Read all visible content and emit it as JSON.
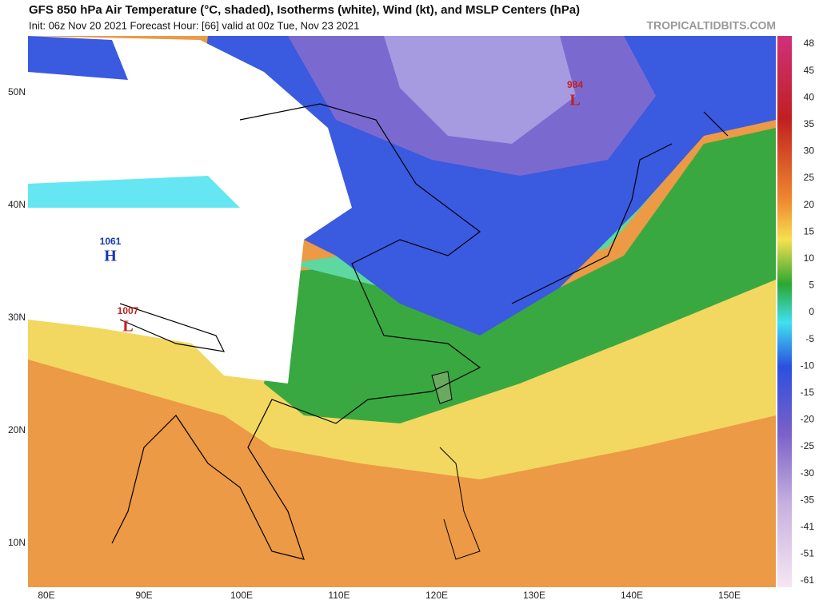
{
  "header": {
    "title": "GFS 850 hPa Air Temperature (°C, shaded), Isotherms (white), Wind (kt), and MSLP Centers (hPa)",
    "subtitle": "Init: 06z Nov 20 2021   Forecast Hour: [66]   valid at 00z Tue, Nov 23 2021",
    "watermark": "TROPICALTIDBITS.COM"
  },
  "map": {
    "lat_labels": [
      "50N",
      "40N",
      "30N",
      "20N",
      "10N"
    ],
    "lon_labels": [
      "80E",
      "90E",
      "100E",
      "110E",
      "120E",
      "130E",
      "140E",
      "150E"
    ],
    "pressure_centers": [
      {
        "value": "1061",
        "symbol": "H"
      },
      {
        "value": "1007",
        "symbol": "L"
      },
      {
        "value": "984",
        "symbol": "L"
      }
    ]
  },
  "colorbar": {
    "labels": [
      "48",
      "45",
      "40",
      "35",
      "30",
      "25",
      "20",
      "15",
      "10",
      "5",
      "0",
      "-5",
      "-10",
      "-15",
      "-20",
      "-25",
      "-30",
      "-35",
      "-41",
      "-51",
      "-61"
    ]
  }
}
